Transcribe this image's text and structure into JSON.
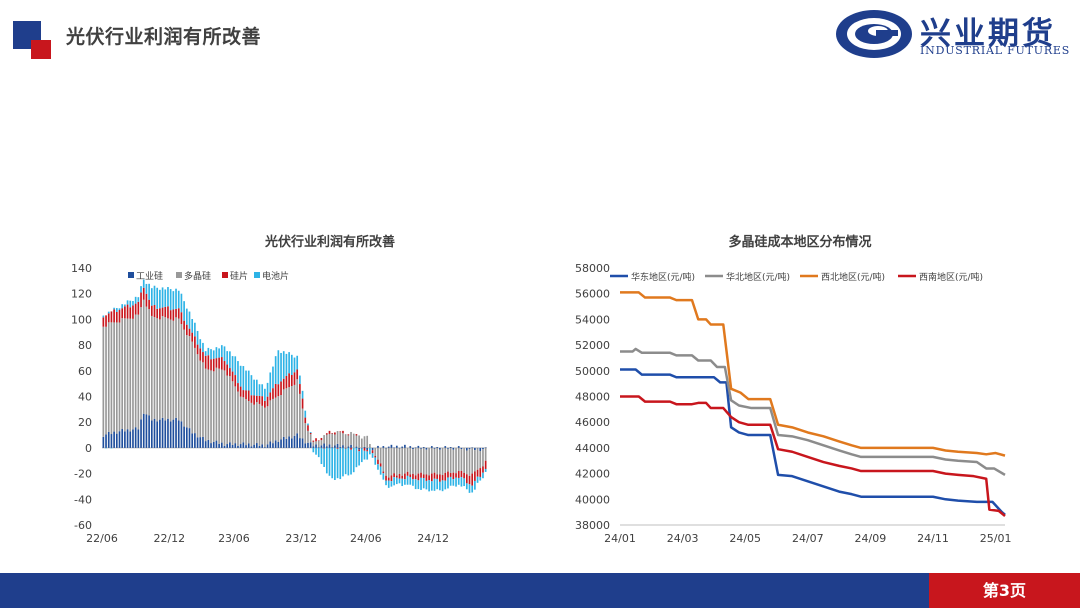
{
  "header": {
    "title": "光伏行业利润有所改善",
    "logo_cn": "兴业期货",
    "logo_en": "INDUSTRIAL FUTURES"
  },
  "footer": {
    "page_label": "第3页"
  },
  "colors": {
    "brand_blue": "#1f3e8c",
    "brand_red": "#c8161d"
  },
  "chart_data": [
    {
      "type": "bar",
      "stacked": true,
      "title": "光伏行业利润有所改善",
      "xlabel": "",
      "ylabel": "",
      "ylim": [
        -60,
        140
      ],
      "yticks": [
        -60,
        -40,
        -20,
        0,
        20,
        40,
        60,
        80,
        100,
        120,
        140
      ],
      "xtick_labels": [
        "22/06",
        "22/12",
        "23/06",
        "23/12",
        "24/06",
        "24/12"
      ],
      "legend_position": "top-left",
      "series": [
        {
          "name": "工业硅",
          "color": "#1f4e9c",
          "anchors": [
            [
              0,
              10
            ],
            [
              6,
              13
            ],
            [
              13,
              15
            ],
            [
              15,
              28
            ],
            [
              18,
              22
            ],
            [
              28,
              22
            ],
            [
              33,
              12
            ],
            [
              38,
              6
            ],
            [
              45,
              3
            ],
            [
              52,
              3
            ],
            [
              60,
              2
            ],
            [
              65,
              6
            ],
            [
              72,
              10
            ],
            [
              75,
              5
            ],
            [
              78,
              2
            ],
            [
              85,
              2
            ],
            [
              92,
              1
            ],
            [
              98,
              -1
            ],
            [
              105,
              1
            ],
            [
              112,
              1
            ],
            [
              118,
              0
            ],
            [
              125,
              0
            ],
            [
              132,
              0
            ],
            [
              137,
              -1
            ],
            [
              142,
              -1
            ]
          ]
        },
        {
          "name": "多晶硅",
          "color": "#999999",
          "anchors": [
            [
              0,
              85
            ],
            [
              6,
              86
            ],
            [
              13,
              88
            ],
            [
              15,
              88
            ],
            [
              18,
              80
            ],
            [
              28,
              78
            ],
            [
              33,
              70
            ],
            [
              38,
              55
            ],
            [
              45,
              58
            ],
            [
              52,
              35
            ],
            [
              60,
              30
            ],
            [
              65,
              35
            ],
            [
              72,
              42
            ],
            [
              75,
              15
            ],
            [
              78,
              2
            ],
            [
              85,
              10
            ],
            [
              92,
              10
            ],
            [
              98,
              8
            ],
            [
              105,
              -22
            ],
            [
              112,
              -20
            ],
            [
              118,
              -20
            ],
            [
              125,
              -20
            ],
            [
              132,
              -18
            ],
            [
              137,
              -20
            ],
            [
              142,
              -10
            ]
          ]
        },
        {
          "name": "硅片",
          "color": "#c8161d",
          "anchors": [
            [
              0,
              8
            ],
            [
              6,
              9
            ],
            [
              13,
              10
            ],
            [
              15,
              10
            ],
            [
              18,
              8
            ],
            [
              28,
              8
            ],
            [
              33,
              7
            ],
            [
              38,
              10
            ],
            [
              45,
              8
            ],
            [
              52,
              7
            ],
            [
              60,
              6
            ],
            [
              65,
              10
            ],
            [
              72,
              9
            ],
            [
              75,
              5
            ],
            [
              78,
              1
            ],
            [
              85,
              1
            ],
            [
              92,
              0
            ],
            [
              98,
              -1
            ],
            [
              105,
              -3
            ],
            [
              112,
              -3
            ],
            [
              118,
              -4
            ],
            [
              125,
              -5
            ],
            [
              132,
              -4
            ],
            [
              137,
              -8
            ],
            [
              142,
              -5
            ]
          ]
        },
        {
          "name": "电池片",
          "color": "#2eb3e6",
          "anchors": [
            [
              0,
              0
            ],
            [
              6,
              2
            ],
            [
              13,
              5
            ],
            [
              15,
              5
            ],
            [
              18,
              15
            ],
            [
              28,
              15
            ],
            [
              33,
              12
            ],
            [
              38,
              5
            ],
            [
              45,
              10
            ],
            [
              52,
              18
            ],
            [
              60,
              8
            ],
            [
              65,
              25
            ],
            [
              72,
              10
            ],
            [
              75,
              4
            ],
            [
              78,
              -2
            ],
            [
              85,
              -25
            ],
            [
              92,
              -20
            ],
            [
              98,
              -5
            ],
            [
              105,
              -5
            ],
            [
              112,
              -5
            ],
            [
              118,
              -8
            ],
            [
              125,
              -8
            ],
            [
              132,
              -6
            ],
            [
              137,
              -6
            ],
            [
              142,
              -3
            ]
          ]
        }
      ]
    },
    {
      "type": "line",
      "title": "多晶硅成本地区分布情况",
      "xlabel": "",
      "ylabel": "",
      "ylim": [
        38000,
        58000
      ],
      "yticks": [
        38000,
        40000,
        42000,
        44000,
        46000,
        48000,
        50000,
        52000,
        54000,
        56000,
        58000
      ],
      "xtick_labels": [
        "24/01",
        "24/03",
        "24/05",
        "24/07",
        "24/09",
        "24/11",
        "25/01"
      ],
      "legend_position": "top",
      "x_min_month": 0,
      "x_max_month": 12.3,
      "series": [
        {
          "name": "华东地区(元/吨)",
          "color": "#1f4eaa",
          "points": [
            [
              0.0,
              50100
            ],
            [
              0.5,
              50100
            ],
            [
              0.7,
              49700
            ],
            [
              1.6,
              49700
            ],
            [
              1.8,
              49500
            ],
            [
              3.0,
              49500
            ],
            [
              3.2,
              49100
            ],
            [
              3.4,
              49100
            ],
            [
              3.55,
              45600
            ],
            [
              3.8,
              45200
            ],
            [
              4.1,
              45000
            ],
            [
              4.8,
              45000
            ],
            [
              5.05,
              41900
            ],
            [
              5.5,
              41800
            ],
            [
              6.0,
              41400
            ],
            [
              6.5,
              41000
            ],
            [
              7.0,
              40600
            ],
            [
              7.4,
              40400
            ],
            [
              7.7,
              40200
            ],
            [
              10.0,
              40200
            ],
            [
              10.4,
              40000
            ],
            [
              10.8,
              39900
            ],
            [
              11.4,
              39800
            ],
            [
              11.9,
              39800
            ],
            [
              12.2,
              39000
            ],
            [
              12.3,
              38800
            ]
          ]
        },
        {
          "name": "华北地区(元/吨)",
          "color": "#8c8c8c",
          "points": [
            [
              0.0,
              51500
            ],
            [
              0.4,
              51500
            ],
            [
              0.5,
              51700
            ],
            [
              0.7,
              51400
            ],
            [
              1.6,
              51400
            ],
            [
              1.8,
              51200
            ],
            [
              2.3,
              51200
            ],
            [
              2.5,
              50800
            ],
            [
              2.9,
              50800
            ],
            [
              3.1,
              50300
            ],
            [
              3.35,
              50300
            ],
            [
              3.55,
              47700
            ],
            [
              3.8,
              47300
            ],
            [
              4.2,
              47100
            ],
            [
              4.8,
              47100
            ],
            [
              5.05,
              45000
            ],
            [
              5.5,
              44900
            ],
            [
              6.0,
              44600
            ],
            [
              6.5,
              44200
            ],
            [
              7.0,
              43800
            ],
            [
              7.4,
              43500
            ],
            [
              7.7,
              43300
            ],
            [
              10.0,
              43300
            ],
            [
              10.4,
              43100
            ],
            [
              10.8,
              43000
            ],
            [
              11.4,
              42900
            ],
            [
              11.7,
              42400
            ],
            [
              11.95,
              42400
            ],
            [
              12.3,
              41900
            ]
          ]
        },
        {
          "name": "西北地区(元/吨)",
          "color": "#e0791e",
          "points": [
            [
              0.0,
              56100
            ],
            [
              0.6,
              56100
            ],
            [
              0.8,
              55700
            ],
            [
              1.6,
              55700
            ],
            [
              1.8,
              55500
            ],
            [
              2.3,
              55500
            ],
            [
              2.5,
              54000
            ],
            [
              2.75,
              54000
            ],
            [
              2.9,
              53600
            ],
            [
              3.3,
              53600
            ],
            [
              3.55,
              48600
            ],
            [
              3.85,
              48300
            ],
            [
              4.1,
              47800
            ],
            [
              4.8,
              47800
            ],
            [
              5.05,
              45800
            ],
            [
              5.5,
              45600
            ],
            [
              6.0,
              45200
            ],
            [
              6.5,
              44900
            ],
            [
              7.0,
              44500
            ],
            [
              7.4,
              44200
            ],
            [
              7.7,
              44000
            ],
            [
              10.0,
              44000
            ],
            [
              10.4,
              43800
            ],
            [
              10.8,
              43700
            ],
            [
              11.4,
              43600
            ],
            [
              11.7,
              43500
            ],
            [
              12.0,
              43600
            ],
            [
              12.3,
              43400
            ]
          ]
        },
        {
          "name": "西南地区(元/吨)",
          "color": "#c8161d",
          "points": [
            [
              0.0,
              48000
            ],
            [
              0.6,
              48000
            ],
            [
              0.8,
              47600
            ],
            [
              1.6,
              47600
            ],
            [
              1.8,
              47400
            ],
            [
              2.3,
              47400
            ],
            [
              2.5,
              47500
            ],
            [
              2.75,
              47500
            ],
            [
              2.9,
              47100
            ],
            [
              3.3,
              47100
            ],
            [
              3.55,
              46400
            ],
            [
              3.8,
              46000
            ],
            [
              4.1,
              45800
            ],
            [
              4.8,
              45800
            ],
            [
              5.05,
              43900
            ],
            [
              5.5,
              43700
            ],
            [
              6.0,
              43300
            ],
            [
              6.5,
              42900
            ],
            [
              7.0,
              42600
            ],
            [
              7.4,
              42400
            ],
            [
              7.7,
              42200
            ],
            [
              10.0,
              42200
            ],
            [
              10.4,
              42000
            ],
            [
              10.8,
              41900
            ],
            [
              11.3,
              41800
            ],
            [
              11.7,
              41600
            ],
            [
              11.8,
              39200
            ],
            [
              12.1,
              39100
            ],
            [
              12.3,
              38700
            ]
          ]
        }
      ]
    }
  ]
}
